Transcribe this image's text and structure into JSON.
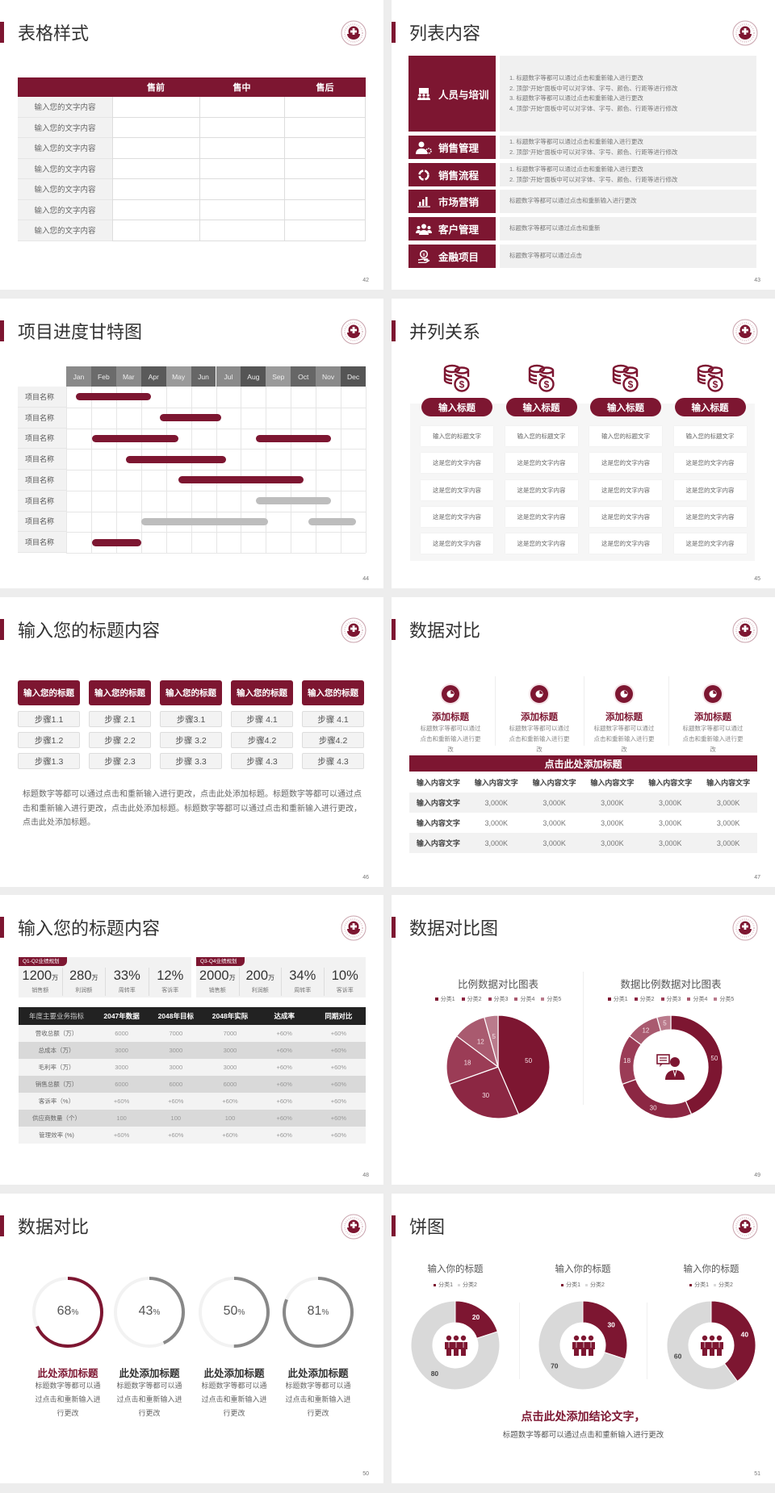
{
  "theme": {
    "accent": "#7d1631",
    "gray_bar": "#bdbdbd",
    "ring_gray": "#888888",
    "dark_header": "#222222"
  },
  "slides": [
    {
      "title": "表格样式",
      "page": "42",
      "table": {
        "headers": [
          "",
          "售前",
          "售中",
          "售后"
        ],
        "rows": [
          "输入您的文字内容",
          "输入您的文字内容",
          "输入您的文字内容",
          "输入您的文字内容",
          "输入您的文字内容",
          "输入您的文字内容",
          "输入您的文字内容"
        ]
      }
    },
    {
      "title": "列表内容",
      "page": "43",
      "items": [
        {
          "icon": "training-icon",
          "label": "人员与培训",
          "lines": [
            "1.  标题数字等都可以通过点击和重新输入进行更改",
            "2.  顶部“开始”面板中可以对字体、字号、颜色、行距等进行修改",
            "3.  标题数字等都可以通过点击和重新输入进行更改",
            "4.  顶部“开始”面板中可以对字体、字号、颜色、行距等进行修改"
          ]
        },
        {
          "icon": "sales-manager-icon",
          "label": "销售管理",
          "lines": [
            "1.  标题数字等都可以通过点击和重新输入进行更改",
            "2.  顶部“开始”面板中可以对字体、字号、颜色、行距等进行修改"
          ]
        },
        {
          "icon": "cycle-icon",
          "label": "销售流程",
          "lines": [
            "1.  标题数字等都可以通过点击和重新输入进行更改",
            "2.  顶部“开始”面板中可以对字体、字号、颜色、行距等进行修改"
          ]
        },
        {
          "icon": "bar-chart-icon",
          "label": "市场营销",
          "lines": [
            "标题数字等都可以通过点击和重新输入进行更改"
          ]
        },
        {
          "icon": "customers-icon",
          "label": "客户管理",
          "lines": [
            "标题数字等都可以通过点击和重新"
          ]
        },
        {
          "icon": "finance-icon",
          "label": "金融项目",
          "lines": [
            "标题数字等都可以通过点击"
          ]
        }
      ]
    },
    {
      "title": "项目进度甘特图",
      "page": "44",
      "months": [
        "Jan",
        "Feb",
        "Mar",
        "Apr",
        "May",
        "Jun",
        "Jul",
        "Aug",
        "Sep",
        "Oct",
        "Nov",
        "Dec"
      ],
      "rows": [
        {
          "label": "项目名称",
          "bars": [
            {
              "start": 0.4,
              "end": 3.4,
              "color": "accent"
            }
          ]
        },
        {
          "label": "项目名称",
          "bars": [
            {
              "start": 3.75,
              "end": 6.2,
              "color": "accent"
            }
          ]
        },
        {
          "label": "项目名称",
          "bars": [
            {
              "start": 1.05,
              "end": 4.5,
              "color": "accent"
            },
            {
              "start": 7.6,
              "end": 10.6,
              "color": "accent"
            }
          ]
        },
        {
          "label": "项目名称",
          "bars": [
            {
              "start": 2.4,
              "end": 6.4,
              "color": "accent"
            }
          ]
        },
        {
          "label": "项目名称",
          "bars": [
            {
              "start": 4.5,
              "end": 9.5,
              "color": "accent"
            }
          ]
        },
        {
          "label": "项目名称",
          "bars": [
            {
              "start": 7.6,
              "end": 10.6,
              "color": "gray"
            }
          ]
        },
        {
          "label": "项目名称",
          "bars": [
            {
              "start": 3.0,
              "end": 8.1,
              "color": "gray"
            },
            {
              "start": 9.7,
              "end": 11.6,
              "color": "gray"
            }
          ]
        },
        {
          "label": "项目名称",
          "bars": [
            {
              "start": 1.05,
              "end": 3.0,
              "color": "accent"
            }
          ]
        }
      ]
    },
    {
      "title": "并列关系",
      "page": "45",
      "columns": [
        {
          "heading": "输入标题",
          "items": [
            "输入您的标题文字",
            "这是您的文字内容",
            "这是您的文字内容",
            "这是您的文字内容",
            "这是您的文字内容"
          ]
        },
        {
          "heading": "输入标题",
          "items": [
            "输入您的标题文字",
            "这是您的文字内容",
            "这是您的文字内容",
            "这是您的文字内容",
            "这是您的文字内容"
          ]
        },
        {
          "heading": "输入标题",
          "items": [
            "输入您的标题文字",
            "这是您的文字内容",
            "这是您的文字内容",
            "这是您的文字内容",
            "这是您的文字内容"
          ]
        },
        {
          "heading": "输入标题",
          "items": [
            "输入您的标题文字",
            "这是您的文字内容",
            "这是您的文字内容",
            "这是您的文字内容",
            "这是您的文字内容"
          ]
        }
      ]
    },
    {
      "title": "输入您的标题内容",
      "page": "46",
      "columns": [
        {
          "heading": "输入您的标题",
          "steps": [
            "步骤1.1",
            "步骤1.2",
            "步骤1.3"
          ]
        },
        {
          "heading": "输入您的标题",
          "steps": [
            "步骤 2.1",
            "步骤 2.2",
            "步骤 2.3"
          ]
        },
        {
          "heading": "输入您的标题",
          "steps": [
            "步骤3.1",
            "步骤 3.2",
            "步骤 3.3"
          ]
        },
        {
          "heading": "输入您的标题",
          "steps": [
            "步骤 4.1",
            "步骤4.2",
            "步骤 4.3"
          ]
        },
        {
          "heading": "输入您的标题",
          "steps": [
            "步骤 4.1",
            "步骤4.2",
            "步骤 4.3"
          ]
        }
      ],
      "paragraph": "标题数字等都可以通过点击和重新输入进行更改，点击此处添加标题。标题数字等都可以通过点击和重新输入进行更改，点击此处添加标题。标题数字等都可以通过点击和重新输入进行更改，点击此处添加标题。"
    },
    {
      "title": "数据对比",
      "page": "47",
      "features": [
        {
          "icon": "pie-icon",
          "heading": "添加标题",
          "desc": "标题数字等都可以通过点击和重新输入进行更改"
        },
        {
          "icon": "pie-icon",
          "heading": "添加标题",
          "desc": "标题数字等都可以通过点击和重新输入进行更改"
        },
        {
          "icon": "pie-icon",
          "heading": "添加标题",
          "desc": "标题数字等都可以通过点击和重新输入进行更改"
        },
        {
          "icon": "pie-icon",
          "heading": "添加标题",
          "desc": "标题数字等都可以通过点击和重新输入进行更改"
        }
      ],
      "table": {
        "title": "点击此处添加标题",
        "headers": [
          "输入内容文字",
          "输入内容文字",
          "输入内容文字",
          "输入内容文字",
          "输入内容文字",
          "输入内容文字"
        ],
        "rows": [
          [
            "输入内容文字",
            "3,000K",
            "3,000K",
            "3,000K",
            "3,000K",
            "3,000K"
          ],
          [
            "输入内容文字",
            "3,000K",
            "3,000K",
            "3,000K",
            "3,000K",
            "3,000K"
          ],
          [
            "输入内容文字",
            "3,000K",
            "3,000K",
            "3,000K",
            "3,000K",
            "3,000K"
          ]
        ]
      }
    },
    {
      "title": "输入您的标题内容",
      "page": "48",
      "panels": [
        {
          "tag": "Q1-Q2业绩规划",
          "stats": [
            {
              "value": "1200",
              "unit": "万",
              "label": "销售额"
            },
            {
              "value": "280",
              "unit": "万",
              "label": "利润额"
            },
            {
              "value": "33%",
              "unit": "",
              "label": "周转率"
            },
            {
              "value": "12%",
              "unit": "",
              "label": "客诉率"
            }
          ]
        },
        {
          "tag": "Q3-Q4业绩规划",
          "stats": [
            {
              "value": "2000",
              "unit": "万",
              "label": "销售额"
            },
            {
              "value": "200",
              "unit": "万",
              "label": "利润额"
            },
            {
              "value": "34%",
              "unit": "",
              "label": "周转率"
            },
            {
              "value": "10%",
              "unit": "",
              "label": "客诉率"
            }
          ]
        }
      ],
      "table": {
        "headers": [
          "年度主要业务指标",
          "2047年数据",
          "2048年目标",
          "2048年实际",
          "达成率",
          "同期对比"
        ],
        "rows": [
          [
            "营收总额（万）",
            "6000",
            "7000",
            "7000",
            "+60%",
            "+60%"
          ],
          [
            "总成本（万）",
            "3000",
            "3000",
            "3000",
            "+60%",
            "+60%"
          ],
          [
            "毛利率（万）",
            "3000",
            "3000",
            "3000",
            "+60%",
            "+60%"
          ],
          [
            "销售总额（万）",
            "6000",
            "6000",
            "6000",
            "+60%",
            "+60%"
          ],
          [
            "客诉率（%）",
            "+60%",
            "+60%",
            "+60%",
            "+60%",
            "+60%"
          ],
          [
            "供应商数量（个）",
            "100",
            "100",
            "100",
            "+60%",
            "+60%"
          ],
          [
            "管理效率 (%)",
            "+60%",
            "+60%",
            "+60%",
            "+60%",
            "+60%"
          ]
        ]
      }
    },
    {
      "title": "数据对比图",
      "page": "49",
      "charts": [
        {
          "type": "pie",
          "title": "比例数据对比图表",
          "categories": [
            "分类1",
            "分类2",
            "分类3",
            "分类4",
            "分类5"
          ],
          "values": [
            50,
            30,
            18,
            12,
            5
          ],
          "colors": [
            "#7d1631",
            "#8c2743",
            "#9b3c56",
            "#a95a6f",
            "#ba7b8c"
          ]
        },
        {
          "type": "donut",
          "title": "数据比例数据对比图表",
          "categories": [
            "分类1",
            "分类2",
            "分类3",
            "分类4",
            "分类5"
          ],
          "values": [
            50,
            30,
            18,
            12,
            5
          ],
          "colors": [
            "#7d1631",
            "#8c2743",
            "#9b3c56",
            "#a95a6f",
            "#ba7b8c"
          ],
          "center_icon": "person-chat-icon"
        }
      ]
    },
    {
      "title": "数据对比",
      "page": "50",
      "rings": [
        {
          "value": 68,
          "label": "68",
          "unit": "%",
          "heading": "此处添加标题",
          "desc": "标题数字等都可以通过点击和重新输入进行更改",
          "color": "#7d1631",
          "heading_color": "#7d1631"
        },
        {
          "value": 43,
          "label": "43",
          "unit": "%",
          "heading": "此处添加标题",
          "desc": "标题数字等都可以通过点击和重新输入进行更改",
          "color": "#888888",
          "heading_color": "#333333"
        },
        {
          "value": 50,
          "label": "50",
          "unit": "%",
          "heading": "此处添加标题",
          "desc": "标题数字等都可以通过点击和重新输入进行更改",
          "color": "#888888",
          "heading_color": "#333333"
        },
        {
          "value": 81,
          "label": "81",
          "unit": "%",
          "heading": "此处添加标题",
          "desc": "标题数字等都可以通过点击和重新输入进行更改",
          "color": "#888888",
          "heading_color": "#333333"
        }
      ]
    },
    {
      "title": "饼图",
      "page": "51",
      "charts": [
        {
          "type": "donut",
          "title": "输入你的标题",
          "categories": [
            "分类1",
            "分类2"
          ],
          "values": [
            20,
            80
          ],
          "colors": [
            "#7d1631",
            "#d9d9d9"
          ],
          "center_icon": "people-group-icon"
        },
        {
          "type": "donut",
          "title": "输入你的标题",
          "categories": [
            "分类1",
            "分类2"
          ],
          "values": [
            30,
            70
          ],
          "colors": [
            "#7d1631",
            "#d9d9d9"
          ],
          "center_icon": "people-group-icon"
        },
        {
          "type": "donut",
          "title": "输入你的标题",
          "categories": [
            "分类1",
            "分类2"
          ],
          "values": [
            40,
            60
          ],
          "colors": [
            "#7d1631",
            "#d9d9d9"
          ],
          "center_icon": "people-group-icon"
        }
      ],
      "conclusion": "点击此处添加结论文字，",
      "conclusion_sub": "标题数字等都可以通过点击和重新输入进行更改"
    }
  ]
}
